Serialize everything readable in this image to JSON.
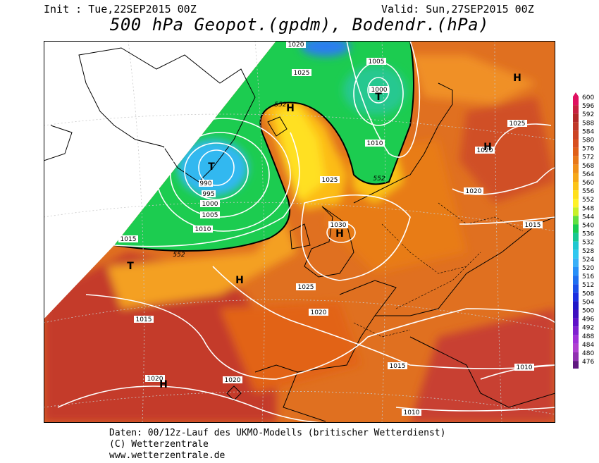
{
  "header": {
    "init": "Init : Tue,22SEP2015 00Z",
    "valid": "Valid: Sun,27SEP2015 00Z",
    "title": "500 hPa Geopot.(gpdm), Bodendr.(hPa)"
  },
  "footer": {
    "line1": "Daten: 00/12z-Lauf des UKMO-Modells (britischer Wetterdienst)",
    "line2": "(C) Wetterzentrale",
    "line3": "www.wetterzentrale.de"
  },
  "colors": {
    "low": "#1c44e8",
    "deep_blue": "#2a7ef0",
    "cyan": "#30c8f0",
    "green": "#18cc50",
    "yellow": "#ffee20",
    "orange": "#f08820",
    "red": "#c43a2a",
    "contour": "#ffffff",
    "coast": "#000000"
  },
  "color_scale": {
    "levels": [
      600,
      596,
      592,
      588,
      584,
      580,
      576,
      572,
      568,
      564,
      560,
      556,
      552,
      548,
      544,
      540,
      536,
      532,
      528,
      524,
      520,
      516,
      512,
      508,
      504,
      500,
      496,
      492,
      488,
      484,
      480,
      476
    ],
    "colors": [
      "#e01060",
      "#c82040",
      "#b42828",
      "#c03828",
      "#cc4424",
      "#d85020",
      "#e06018",
      "#e87818",
      "#f09018",
      "#f6a818",
      "#fcc418",
      "#ffe01c",
      "#fff228",
      "#c8f028",
      "#60e040",
      "#18cc50",
      "#18c890",
      "#20c8d0",
      "#30c8f0",
      "#3ab0f8",
      "#2890f8",
      "#2070f0",
      "#1c50e8",
      "#1c30e0",
      "#2018c8",
      "#4010c0",
      "#6010c8",
      "#8020d0",
      "#a030d8",
      "#b040d0",
      "#9030b0",
      "#601880"
    ]
  },
  "pressure_labels": [
    "1020",
    "1025",
    "1005",
    "1000",
    "552",
    "990",
    "995",
    "1000",
    "1005",
    "1010",
    "1015",
    "552",
    "1010",
    "552",
    "1025",
    "1030",
    "1025",
    "1020",
    "1015",
    "1020",
    "1015",
    "1020",
    "1015",
    "1010",
    "1010",
    "1025",
    "1020",
    "1020"
  ],
  "systems": [
    "H",
    "T",
    "T",
    "H",
    "H",
    "T",
    "H",
    "H",
    "H"
  ]
}
